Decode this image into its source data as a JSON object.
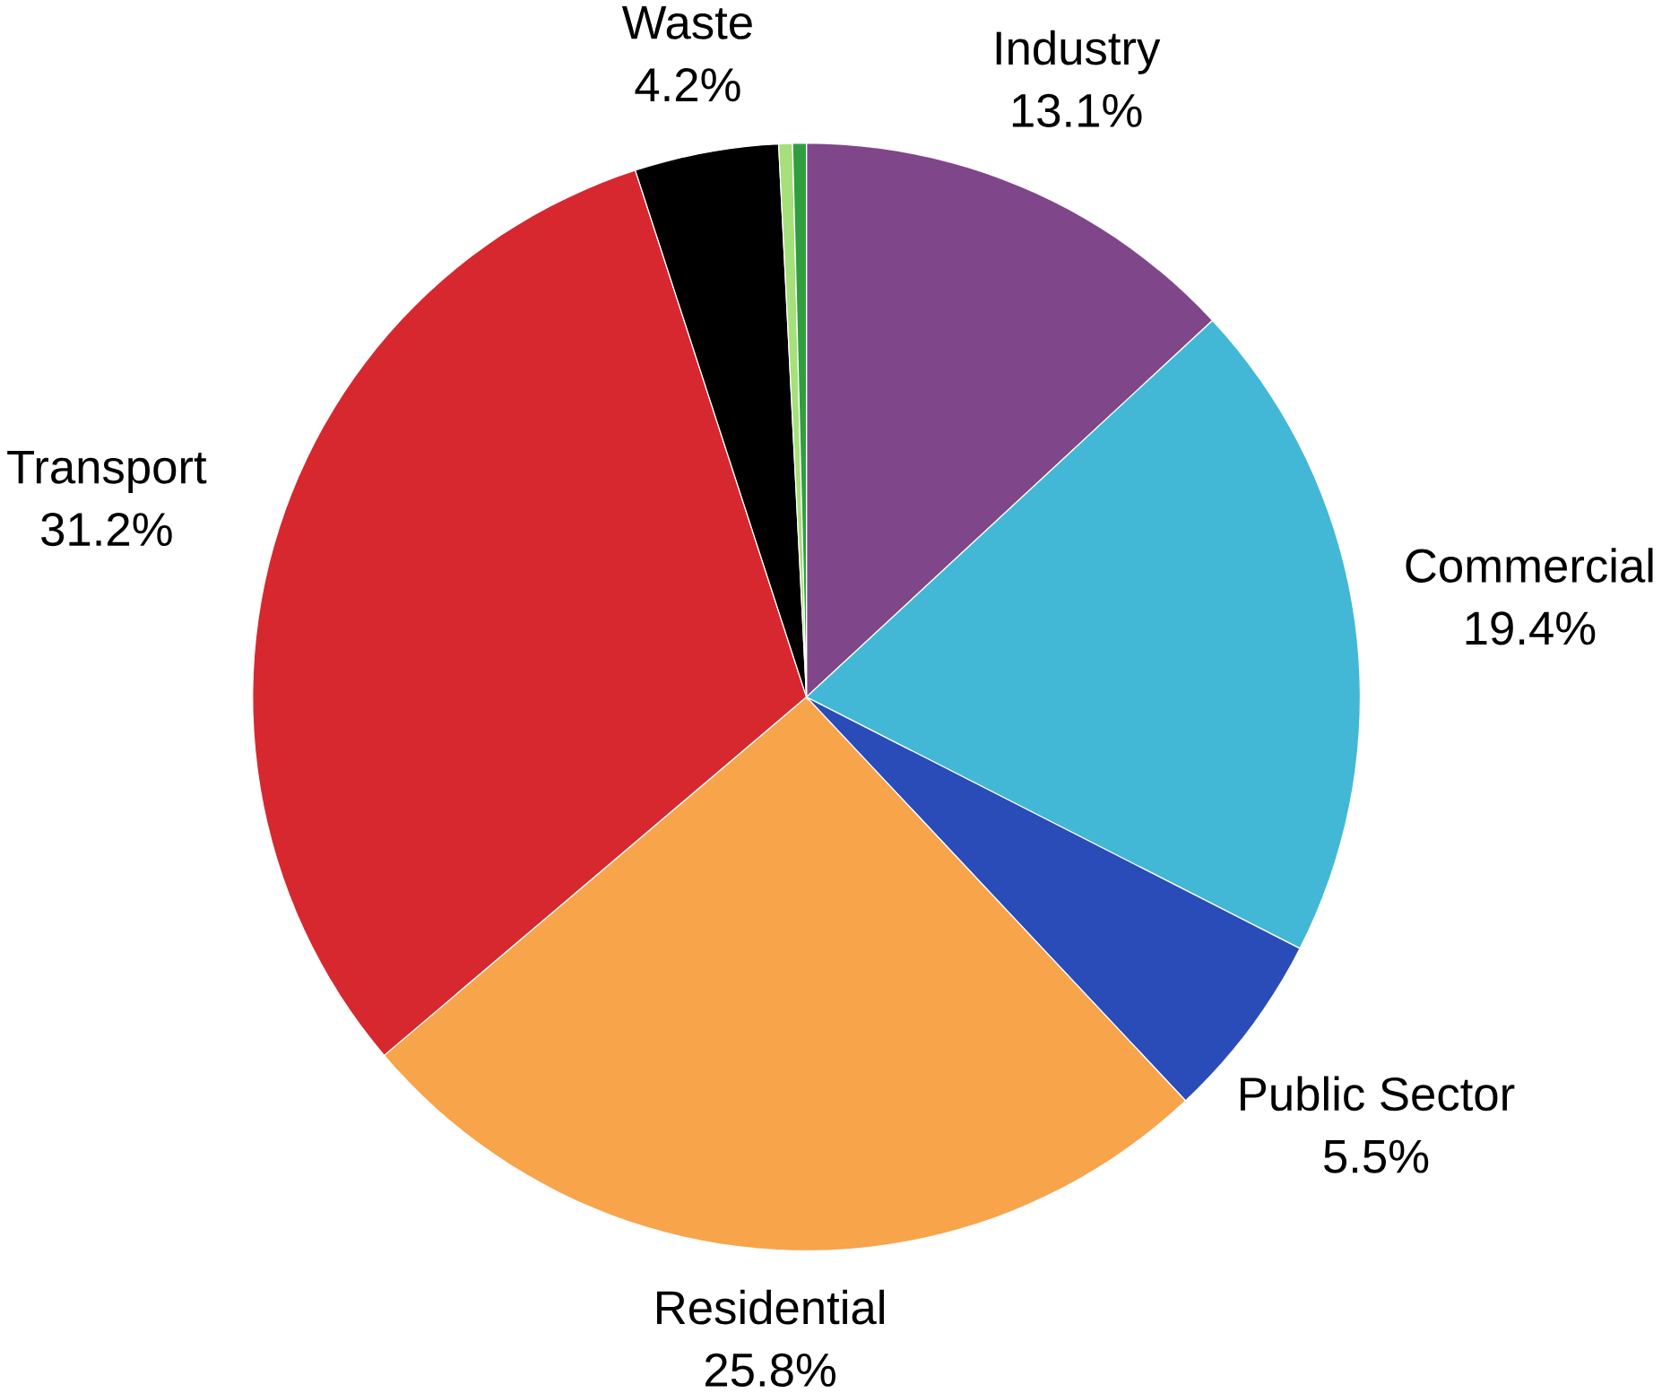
{
  "chart_data": {
    "type": "pie",
    "categories": [
      "Industry",
      "Commercial",
      "Public Sector",
      "Residential",
      "Transport",
      "Waste",
      null,
      null
    ],
    "values": [
      13.1,
      19.4,
      5.5,
      25.8,
      31.2,
      4.2,
      0.4,
      0.4
    ],
    "value_labels": [
      "13.1%",
      "19.4%",
      "5.5%",
      "25.8%",
      "31.2%",
      "4.2%",
      null,
      null
    ],
    "colors": [
      "#7f468a",
      "#42b8d6",
      "#2a4cb8",
      "#f7a44b",
      "#d7282f",
      "#000000",
      "#a6e07a",
      "#2e9e3e"
    ]
  }
}
